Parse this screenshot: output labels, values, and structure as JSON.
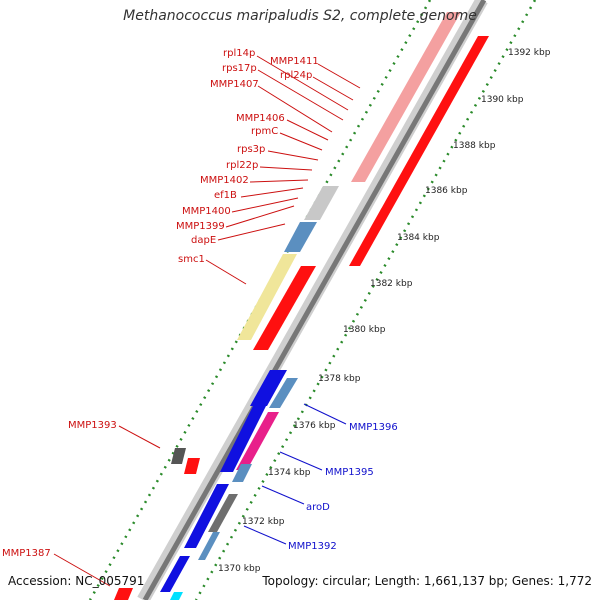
{
  "title": "Methanococcus maripaludis S2, complete genome",
  "footer": {
    "accession": "Accession: NC_005791",
    "summary": "Topology: circular; Length: 1,661,137 bp; Genes: 1,772"
  },
  "colors": {
    "backbone": "#a9a9a9",
    "tick": "#2a8a2a",
    "label_red": "#cc1010",
    "label_blue": "#1010cc"
  },
  "kbp_labels": [
    "1392 kbp",
    "1390 kbp",
    "1388 kbp",
    "1386 kbp",
    "1384 kbp",
    "1382 kbp",
    "1380 kbp",
    "1378 kbp",
    "1376 kbp",
    "1374 kbp",
    "1372 kbp",
    "1370 kbp"
  ],
  "gene_labels": [
    "rpl14p",
    "MMP1411",
    "rps17p",
    "rpl24p",
    "MMP1407",
    "MMP1406",
    "rpmC",
    "rps3p",
    "rpl22p",
    "MMP1402",
    "ef1B",
    "MMP1400",
    "MMP1399",
    "dapE",
    "smc1",
    "MMP1393",
    "MMP1387",
    "MMP1396",
    "MMP1395",
    "aroD",
    "MMP1392"
  ]
}
